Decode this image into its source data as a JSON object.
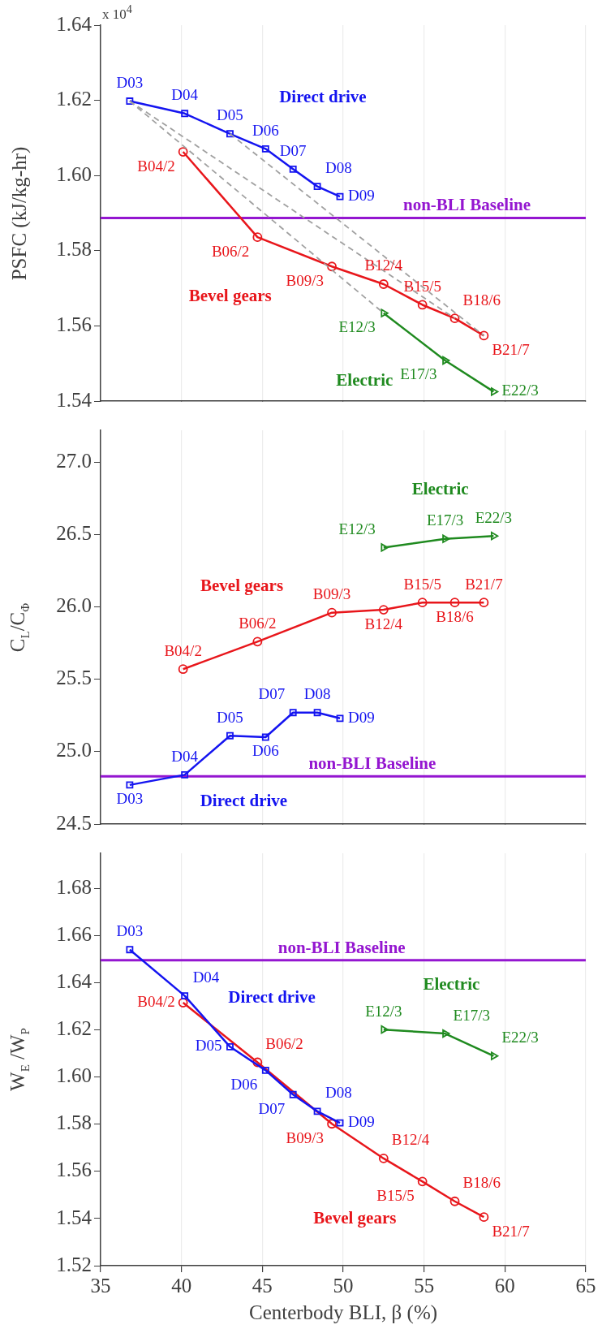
{
  "chart_data": [
    {
      "type": "line",
      "ylabel": "PSFC (kJ/kg-hr)",
      "xlim": [
        35,
        65
      ],
      "xticks": [
        35,
        40,
        45,
        50,
        55,
        60,
        65
      ],
      "ylim": [
        1.54,
        1.64
      ],
      "yticks": [
        1.54,
        1.56,
        1.58,
        {
          "value": 1.6,
          "label": "1.60"
        },
        1.62,
        1.64
      ],
      "grid": "x",
      "tick_labels": "y",
      "series": [
        {
          "color": "#a0a0a0",
          "line_style": "dashed",
          "marker": "none",
          "x": [
            36.8,
            52.5
          ],
          "values": [
            1.6198,
            1.5634
          ]
        },
        {
          "color": "#a0a0a0",
          "line_style": "dashed",
          "marker": "none",
          "x": [
            36.8,
            56.9
          ],
          "values": [
            1.6198,
            1.562
          ]
        },
        {
          "color": "#a0a0a0",
          "line_style": "dashed",
          "marker": "none",
          "x": [
            43.0,
            58.7
          ],
          "values": [
            1.6111,
            1.5574
          ]
        },
        {
          "name": "Direct drive",
          "color": "#1414f0",
          "marker": "square",
          "x": [
            36.8,
            40.2,
            43.0,
            45.2,
            46.9,
            48.4,
            49.8
          ],
          "values": [
            1.6198,
            1.6165,
            1.6111,
            1.6071,
            1.6017,
            1.5971,
            1.5944
          ]
        },
        {
          "name": "Bevel gears",
          "color": "#e8161b",
          "marker": "circle",
          "x": [
            40.1,
            44.7,
            49.3,
            52.5,
            54.9,
            56.9,
            58.7
          ],
          "values": [
            1.6063,
            1.5836,
            1.5758,
            1.5711,
            1.5656,
            1.562,
            1.5574
          ]
        },
        {
          "name": "Electric",
          "color": "#1f8a1f",
          "marker": "triangle",
          "x": [
            52.5,
            56.3,
            59.3
          ],
          "values": [
            1.5634,
            1.5508,
            1.5425
          ]
        }
      ],
      "ref_lines": [
        {
          "axis": "y",
          "value": 1.5887,
          "label": "non-BLI Baseline",
          "color": "#9416d0"
        }
      ],
      "annotations": [
        {
          "text": "D03",
          "x": 36.8,
          "y": 1.6198
        },
        {
          "text": "D04",
          "x": 40.2,
          "y": 1.6165
        },
        {
          "text": "D05",
          "x": 43.0,
          "y": 1.6111
        },
        {
          "text": "D06",
          "x": 45.2,
          "y": 1.6071
        },
        {
          "text": "D07",
          "x": 46.9,
          "y": 1.6017
        },
        {
          "text": "D08",
          "x": 48.4,
          "y": 1.5971
        },
        {
          "text": "D09",
          "x": 49.8,
          "y": 1.5944
        },
        {
          "text": "B04/2",
          "x": 40.1,
          "y": 1.6063
        },
        {
          "text": "B06/2",
          "x": 44.7,
          "y": 1.5836
        },
        {
          "text": "B09/3",
          "x": 49.3,
          "y": 1.5758
        },
        {
          "text": "B12/4",
          "x": 52.5,
          "y": 1.5711
        },
        {
          "text": "B15/5",
          "x": 54.9,
          "y": 1.5656
        },
        {
          "text": "B18/6",
          "x": 56.9,
          "y": 1.562
        },
        {
          "text": "B21/7",
          "x": 58.7,
          "y": 1.5574
        },
        {
          "text": "E12/3",
          "x": 52.5,
          "y": 1.5634
        },
        {
          "text": "E17/3",
          "x": 56.3,
          "y": 1.5508
        },
        {
          "text": "E22/3",
          "x": 59.3,
          "y": 1.5425
        },
        "x 10$^{4}$"
      ]
    },
    {
      "type": "line",
      "ylabel": "C$_{L}$/C$_{Φ}$",
      "xlim": [
        35,
        65
      ],
      "xticks": [
        35,
        40,
        45,
        50,
        55,
        60,
        65
      ],
      "ylim": [
        24.5,
        27.22
      ],
      "yticks": [
        {
          "value": 24.5,
          "label": "24.5"
        },
        {
          "value": 25,
          "label": "25.0"
        },
        {
          "value": 25.5,
          "label": "25.5"
        },
        {
          "value": 26,
          "label": "26.0"
        },
        {
          "value": 26.5,
          "label": "26.5"
        },
        {
          "value": 27,
          "label": "27.0"
        }
      ],
      "grid": "x",
      "tick_labels": "y",
      "series": [
        {
          "name": "Direct drive",
          "color": "#1414f0",
          "marker": "square",
          "x": [
            36.8,
            40.2,
            43.0,
            45.2,
            46.9,
            48.4,
            49.8
          ],
          "values": [
            24.77,
            24.84,
            25.11,
            25.1,
            25.27,
            25.27,
            25.23
          ]
        },
        {
          "name": "Bevel gears",
          "color": "#e8161b",
          "marker": "circle",
          "x": [
            40.1,
            44.7,
            49.3,
            52.5,
            54.9,
            56.9,
            58.7
          ],
          "values": [
            25.57,
            25.76,
            25.96,
            25.98,
            26.03,
            26.03,
            26.03
          ]
        },
        {
          "name": "Electric",
          "color": "#1f8a1f",
          "marker": "triangle",
          "x": [
            52.5,
            56.3,
            59.3
          ],
          "values": [
            26.41,
            26.47,
            26.49
          ]
        }
      ],
      "ref_lines": [
        {
          "axis": "y",
          "value": 24.83,
          "label": "non-BLI Baseline",
          "color": "#9416d0"
        }
      ],
      "annotations": [
        {
          "text": "D03",
          "x": 36.8,
          "y": 24.77
        },
        {
          "text": "D04",
          "x": 40.2,
          "y": 24.84
        },
        {
          "text": "D05",
          "x": 43.0,
          "y": 25.11
        },
        {
          "text": "D06",
          "x": 45.2,
          "y": 25.1
        },
        {
          "text": "D07",
          "x": 46.9,
          "y": 25.27
        },
        {
          "text": "D08",
          "x": 48.4,
          "y": 25.27
        },
        {
          "text": "D09",
          "x": 49.8,
          "y": 25.23
        },
        {
          "text": "B04/2",
          "x": 40.1,
          "y": 25.57
        },
        {
          "text": "B06/2",
          "x": 44.7,
          "y": 25.76
        },
        {
          "text": "B09/3",
          "x": 49.3,
          "y": 25.96
        },
        {
          "text": "B12/4",
          "x": 52.5,
          "y": 25.98
        },
        {
          "text": "B15/5",
          "x": 54.9,
          "y": 26.03
        },
        {
          "text": "B18/6",
          "x": 56.9,
          "y": 26.03
        },
        {
          "text": "B21/7",
          "x": 58.7,
          "y": 26.03
        },
        {
          "text": "E12/3",
          "x": 52.5,
          "y": 26.41
        },
        {
          "text": "E17/3",
          "x": 56.3,
          "y": 26.47
        },
        {
          "text": "E22/3",
          "x": 59.3,
          "y": 26.49
        }
      ]
    },
    {
      "type": "line",
      "ylabel": "W$_{E}$ /W$_{P}$",
      "xlabel": "Centerbody BLI, β (%)",
      "xlim": [
        35,
        65
      ],
      "xticks": [
        35,
        40,
        45,
        50,
        55,
        60,
        65
      ],
      "ylim": [
        1.52,
        1.695
      ],
      "yticks": [
        1.52,
        1.54,
        1.56,
        1.58,
        {
          "value": 1.6,
          "label": "1.60"
        },
        1.62,
        1.64,
        1.66,
        1.68
      ],
      "grid": "x",
      "series": [
        {
          "name": "Direct drive",
          "color": "#1414f0",
          "marker": "square",
          "x": [
            36.8,
            40.2,
            43.0,
            45.2,
            46.9,
            48.4,
            49.8
          ],
          "values": [
            1.6541,
            1.6345,
            1.6129,
            1.6029,
            1.5926,
            1.5855,
            1.5806
          ]
        },
        {
          "name": "Bevel gears",
          "color": "#e8161b",
          "marker": "circle",
          "x": [
            40.1,
            44.7,
            49.3,
            52.5,
            54.9,
            56.9,
            58.7
          ],
          "values": [
            1.6316,
            1.6063,
            1.5802,
            1.5655,
            1.5557,
            1.5473,
            1.5406
          ]
        },
        {
          "name": "Electric",
          "color": "#1f8a1f",
          "marker": "triangle",
          "x": [
            52.5,
            56.3,
            59.3
          ],
          "values": [
            1.6202,
            1.6185,
            1.609
          ]
        }
      ],
      "ref_lines": [
        {
          "axis": "y",
          "value": 1.6496,
          "label": "non-BLI Baseline",
          "color": "#9416d0"
        }
      ],
      "annotations": [
        {
          "text": "D03",
          "x": 36.8,
          "y": 1.6541
        },
        {
          "text": "D04",
          "x": 40.2,
          "y": 1.6345
        },
        {
          "text": "D05",
          "x": 43.0,
          "y": 1.6129
        },
        {
          "text": "D06",
          "x": 45.2,
          "y": 1.6029
        },
        {
          "text": "D07",
          "x": 46.9,
          "y": 1.5926
        },
        {
          "text": "D08",
          "x": 48.4,
          "y": 1.5855
        },
        {
          "text": "D09",
          "x": 49.8,
          "y": 1.5806
        },
        {
          "text": "B04/2",
          "x": 40.1,
          "y": 1.6316
        },
        {
          "text": "B06/2",
          "x": 44.7,
          "y": 1.6063
        },
        {
          "text": "B09/3",
          "x": 49.3,
          "y": 1.5802
        },
        {
          "text": "B12/4",
          "x": 52.5,
          "y": 1.5655
        },
        {
          "text": "B15/5",
          "x": 54.9,
          "y": 1.5557
        },
        {
          "text": "B18/6",
          "x": 56.9,
          "y": 1.5473
        },
        {
          "text": "B21/7",
          "x": 58.7,
          "y": 1.5406
        },
        {
          "text": "E12/3",
          "x": 52.5,
          "y": 1.6202
        },
        {
          "text": "E17/3",
          "x": 56.3,
          "y": 1.6185
        },
        {
          "text": "E22/3",
          "x": 59.3,
          "y": 1.609
        }
      ]
    }
  ]
}
